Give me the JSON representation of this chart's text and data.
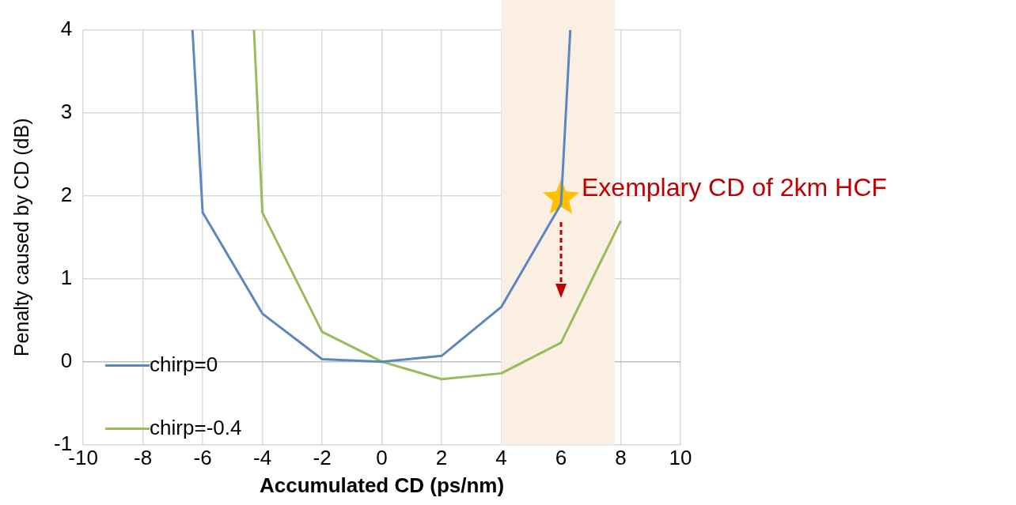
{
  "chart_data": {
    "type": "line",
    "xlabel": "Accumulated CD (ps/nm)",
    "ylabel": "Penalty caused by CD (dB)",
    "xlim": [
      -10,
      10
    ],
    "xticks": [
      -10,
      -8,
      -6,
      -4,
      -2,
      0,
      2,
      4,
      6,
      8,
      10
    ],
    "ylim": [
      -1,
      4
    ],
    "yticks": [
      -1,
      0,
      1,
      2,
      3,
      4
    ],
    "grid": true,
    "legend": "bottom left",
    "marker": "none",
    "line_style": "solid",
    "series": [
      {
        "name": "chirp=0",
        "color": "#5b87c0",
        "x": [
          -6.34,
          -6,
          -4,
          -2,
          0,
          2,
          4,
          6,
          6.31
        ],
        "values": [
          4,
          1.8,
          0.58,
          0.03,
          0,
          0.07,
          0.66,
          1.9,
          4
        ]
      },
      {
        "name": "chirp=-0.4",
        "color": "#9bbb59",
        "x": [
          -4.28,
          -4,
          -2,
          0,
          2,
          4,
          6,
          8
        ],
        "values": [
          4,
          1.8,
          0.36,
          0,
          -0.21,
          -0.14,
          0.23,
          1.7
        ]
      },
      {
        "type": "scatter",
        "marker": "star",
        "color": "#ffc000",
        "x": [
          6
        ],
        "values": [
          1.97
        ]
      }
    ],
    "bands": [
      {
        "axis": "x",
        "from": 4,
        "to": 7.8,
        "color": "#fbeee3"
      }
    ],
    "annotations": [
      {
        "text": "Exemplary CD of 2km HCF",
        "x": 6,
        "y": 1.97
      }
    ]
  }
}
